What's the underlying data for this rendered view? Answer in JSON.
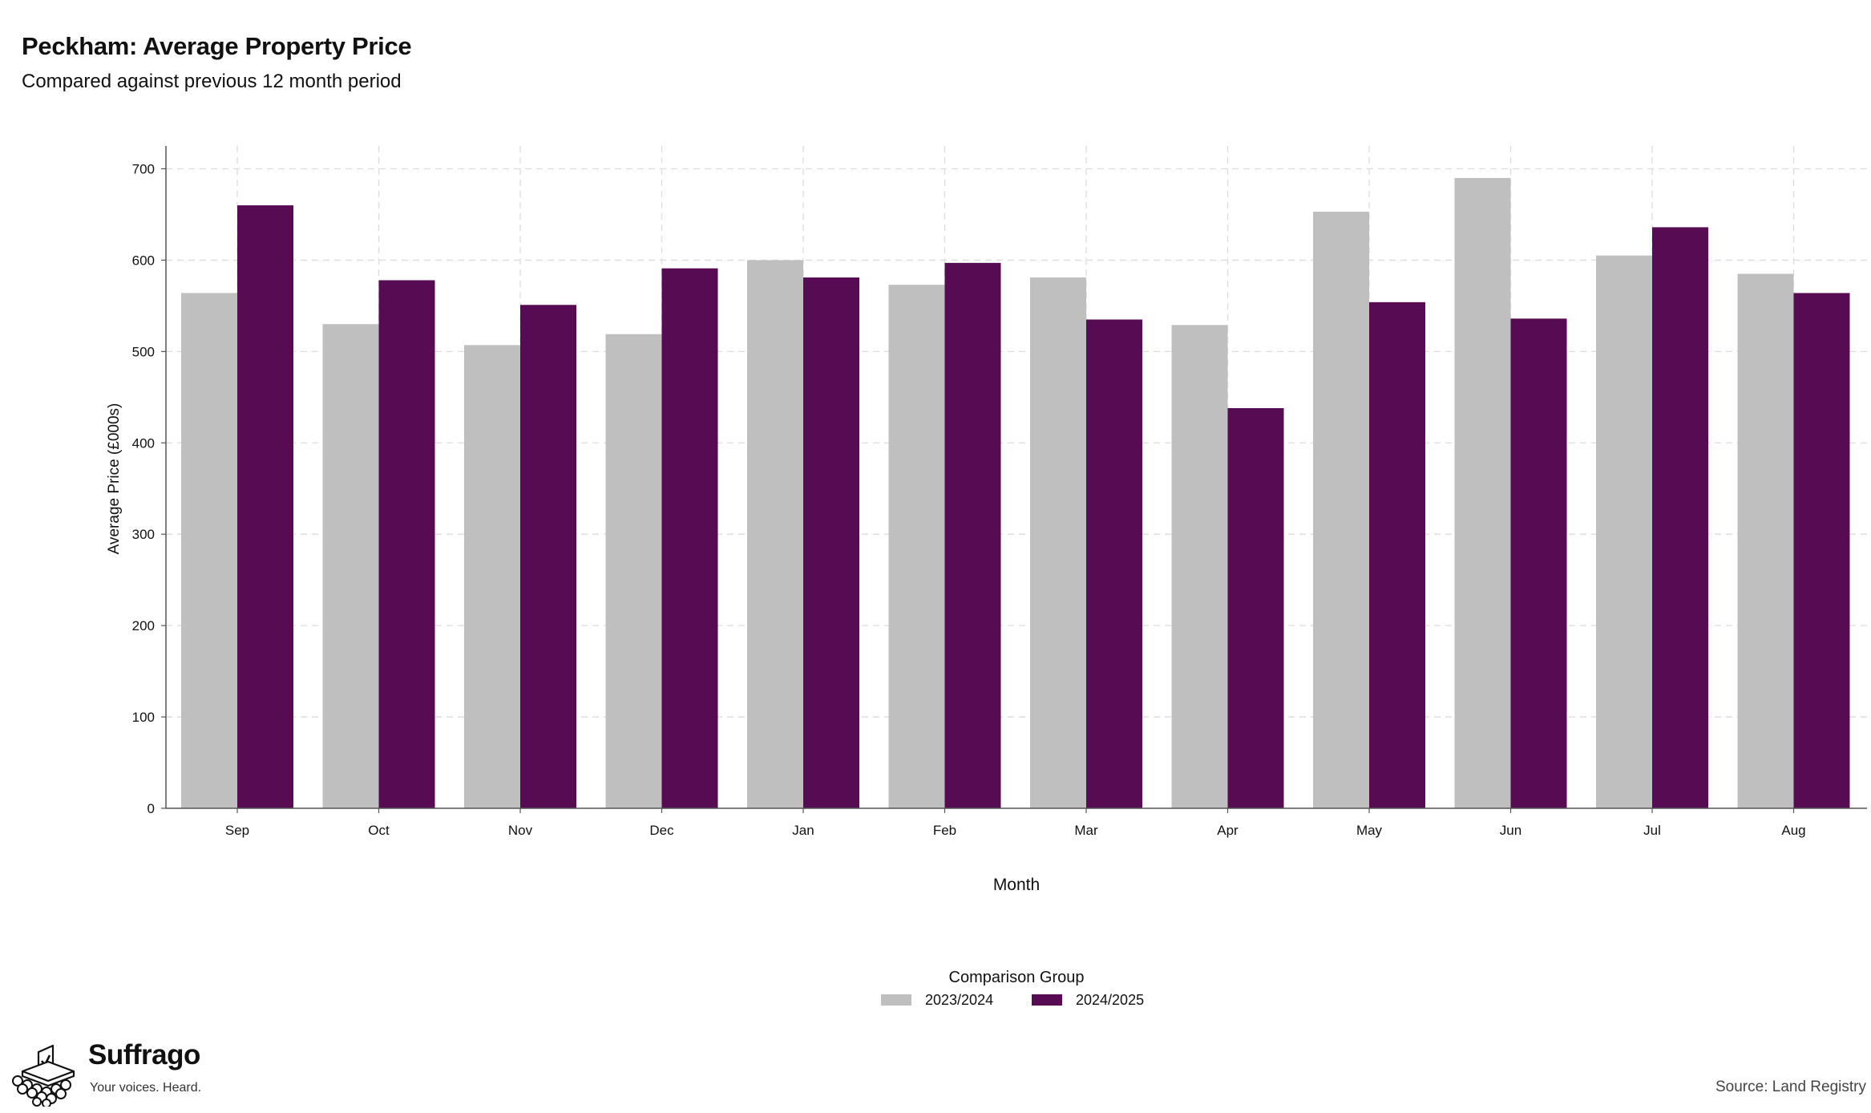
{
  "header": {
    "title": "Peckham: Average Property Price",
    "subtitle": "Compared against previous 12 month period"
  },
  "chart_data": {
    "type": "bar",
    "xlabel": "Month",
    "ylabel": "Average Price (£000s)",
    "ylim": [
      0,
      725
    ],
    "yticks": [
      0,
      100,
      200,
      300,
      400,
      500,
      600,
      700
    ],
    "grid": true,
    "categories": [
      "Sep",
      "Oct",
      "Nov",
      "Dec",
      "Jan",
      "Feb",
      "Mar",
      "Apr",
      "May",
      "Jun",
      "Jul",
      "Aug"
    ],
    "series": [
      {
        "name": "2023/2024",
        "color": "#bfbfbf",
        "values": [
          564,
          530,
          507,
          519,
          600,
          573,
          581,
          529,
          653,
          690,
          605,
          585
        ]
      },
      {
        "name": "2024/2025",
        "color": "#560b52",
        "values": [
          660,
          578,
          551,
          591,
          581,
          597,
          535,
          438,
          554,
          536,
          636,
          564
        ]
      }
    ],
    "legend": {
      "title": "Comparison Group",
      "position": "bottom"
    }
  },
  "branding": {
    "name": "Suffrago",
    "tagline": "Your voices. Heard.",
    "logo_icon": "ballot-box-icon"
  },
  "source": "Source: Land Registry"
}
